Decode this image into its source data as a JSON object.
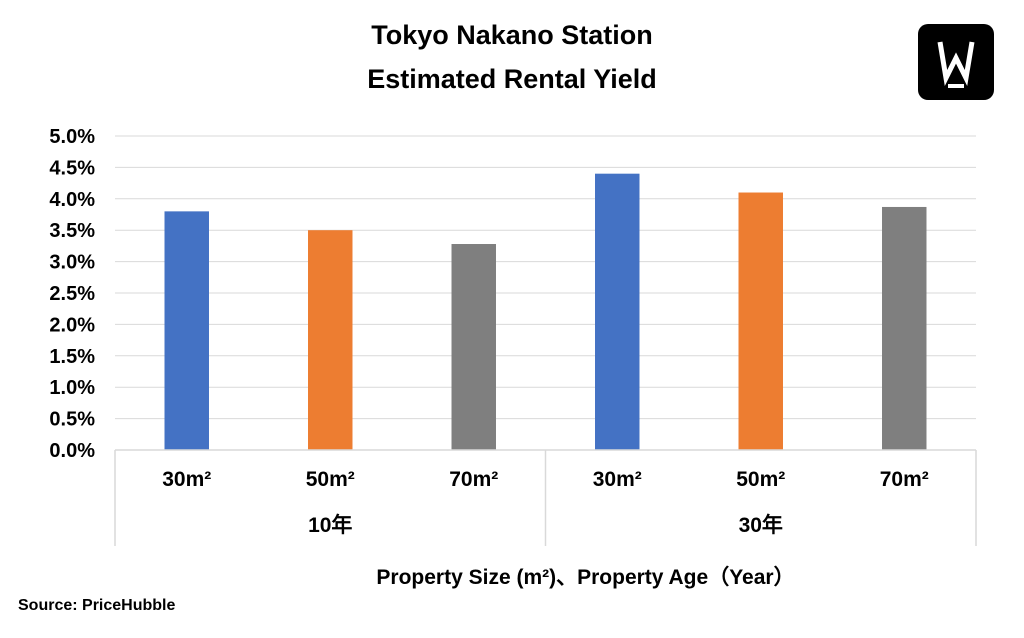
{
  "chart_data": {
    "type": "bar",
    "title_lines": [
      "Tokyo Nakano Station",
      "Estimated Rental Yield"
    ],
    "xlabel": "Property Size (m²)、Property Age（Year）",
    "ylabel": "",
    "ylim": [
      0,
      0.05
    ],
    "y_ticks": [
      0.0,
      0.005,
      0.01,
      0.015,
      0.02,
      0.025,
      0.03,
      0.035,
      0.04,
      0.045,
      0.05
    ],
    "y_tick_labels": [
      "0.0%",
      "0.5%",
      "1.0%",
      "1.5%",
      "2.0%",
      "2.5%",
      "3.0%",
      "3.5%",
      "4.0%",
      "4.5%",
      "5.0%"
    ],
    "grid": true,
    "groups": [
      {
        "label": "10年",
        "categories": [
          "30m²",
          "50m²",
          "70m²"
        ],
        "values": [
          0.038,
          0.035,
          0.0328
        ],
        "colors": [
          "#4472C4",
          "#ED7D31",
          "#7F7F7F"
        ]
      },
      {
        "label": "30年",
        "categories": [
          "30m²",
          "50m²",
          "70m²"
        ],
        "values": [
          0.044,
          0.041,
          0.0387
        ],
        "colors": [
          "#4472C4",
          "#ED7D31",
          "#7F7F7F"
        ]
      }
    ]
  },
  "source": "Source: PriceHubble",
  "logo": {
    "icon": "w-logo-icon",
    "background": "#000000",
    "foreground": "#ffffff"
  }
}
